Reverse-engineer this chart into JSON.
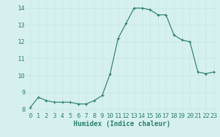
{
  "x": [
    0,
    1,
    2,
    3,
    4,
    5,
    6,
    7,
    8,
    9,
    10,
    11,
    12,
    13,
    14,
    15,
    16,
    17,
    18,
    19,
    20,
    21,
    22,
    23
  ],
  "y": [
    8.1,
    8.7,
    8.5,
    8.4,
    8.4,
    8.4,
    8.3,
    8.3,
    8.5,
    8.8,
    10.1,
    12.2,
    13.1,
    14.0,
    14.0,
    13.9,
    13.6,
    13.6,
    12.4,
    12.1,
    12.0,
    10.2,
    10.1,
    10.2
  ],
  "xlabel": "Humidex (Indice chaleur)",
  "ylim": [
    7.8,
    14.4
  ],
  "xlim": [
    -0.5,
    23.5
  ],
  "yticks": [
    8,
    9,
    10,
    11,
    12,
    13,
    14
  ],
  "xticks": [
    0,
    1,
    2,
    3,
    4,
    5,
    6,
    7,
    8,
    9,
    10,
    11,
    12,
    13,
    14,
    15,
    16,
    17,
    18,
    19,
    20,
    21,
    22,
    23
  ],
  "line_color": "#2d7f6e",
  "marker": "+",
  "bg_color": "#d6f0ef",
  "grid_color": "#c8e8e6",
  "tick_color": "#2d7f6e",
  "xlabel_fontsize": 7,
  "tick_fontsize": 6.5
}
